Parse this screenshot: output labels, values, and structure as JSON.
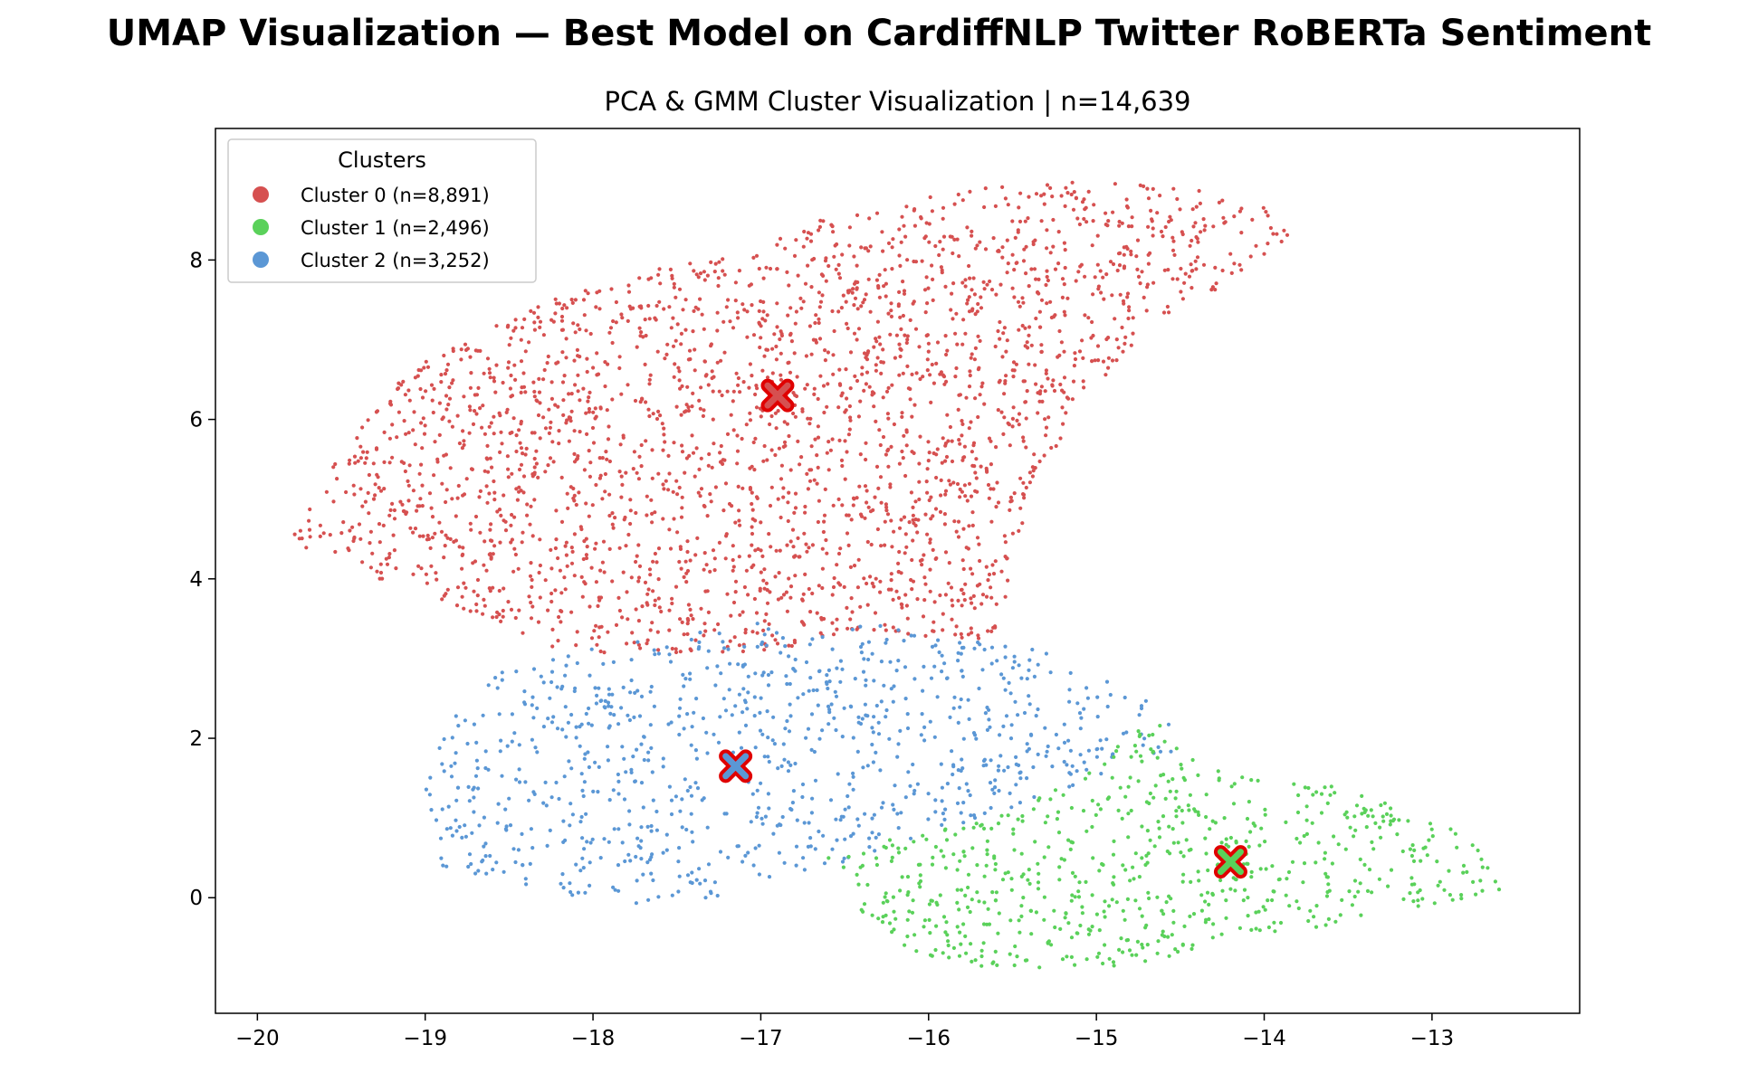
{
  "title": "UMAP Visualization — Best Model on CardiffNLP Twitter RoBERTa Sentiment",
  "chart_data": {
    "type": "scatter",
    "title": "UMAP Visualization — Best Model on CardiffNLP Twitter RoBERTa Sentiment",
    "subtitle": "PCA & GMM Cluster Visualization  |  n=14,639",
    "xlabel": "",
    "ylabel": "",
    "xlim": [
      -20.25,
      -12.12
    ],
    "ylim": [
      -1.45,
      9.65
    ],
    "x_ticks": [
      -20,
      -19,
      -18,
      -17,
      -16,
      -15,
      -14,
      -13
    ],
    "y_ticks": [
      0,
      2,
      4,
      6,
      8
    ],
    "x_tick_labels": [
      "−20",
      "−19",
      "−18",
      "−17",
      "−16",
      "−15",
      "−14",
      "−13"
    ],
    "y_tick_labels": [
      "0",
      "2",
      "4",
      "6",
      "8"
    ],
    "grid": false,
    "legend": {
      "title": "Clusters",
      "placement": "top-left"
    },
    "series": [
      {
        "name": "Cluster 0 (n=8,891)",
        "count": 8891,
        "color": "#d65050",
        "centroid": [
          -16.9,
          6.3
        ],
        "approx_outline": [
          [
            -19.8,
            4.5
          ],
          [
            -19.5,
            5.6
          ],
          [
            -19.2,
            6.5
          ],
          [
            -18.7,
            7.1
          ],
          [
            -18.0,
            7.7
          ],
          [
            -17.2,
            8.1
          ],
          [
            -16.5,
            8.6
          ],
          [
            -15.8,
            8.9
          ],
          [
            -15.0,
            9.0
          ],
          [
            -14.4,
            8.9
          ],
          [
            -14.0,
            8.7
          ],
          [
            -13.85,
            8.3
          ],
          [
            -14.1,
            7.8
          ],
          [
            -14.6,
            7.3
          ],
          [
            -15.1,
            6.2
          ],
          [
            -15.4,
            5.0
          ],
          [
            -15.5,
            4.0
          ],
          [
            -15.6,
            3.2
          ],
          [
            -16.3,
            3.3
          ],
          [
            -17.3,
            3.0
          ],
          [
            -18.2,
            3.1
          ],
          [
            -19.0,
            3.8
          ],
          [
            -19.6,
            4.2
          ]
        ]
      },
      {
        "name": "Cluster 1 (n=2,496)",
        "count": 2496,
        "color": "#5ad15a",
        "centroid": [
          -14.2,
          0.45
        ],
        "approx_outline": [
          [
            -16.6,
            0.5
          ],
          [
            -16.0,
            0.9
          ],
          [
            -15.2,
            1.4
          ],
          [
            -14.7,
            2.3
          ],
          [
            -14.3,
            1.6
          ],
          [
            -13.6,
            1.4
          ],
          [
            -13.0,
            1.0
          ],
          [
            -12.6,
            0.5
          ],
          [
            -12.6,
            0.1
          ],
          [
            -13.2,
            -0.2
          ],
          [
            -14.0,
            -0.5
          ],
          [
            -14.8,
            -0.85
          ],
          [
            -15.8,
            -0.9
          ],
          [
            -16.3,
            -0.5
          ]
        ]
      },
      {
        "name": "Cluster 2 (n=3,252)",
        "count": 3252,
        "color": "#5b97d5",
        "centroid": [
          -17.15,
          1.65
        ],
        "approx_outline": [
          [
            -19.0,
            1.3
          ],
          [
            -18.9,
            2.2
          ],
          [
            -18.5,
            3.0
          ],
          [
            -17.6,
            3.3
          ],
          [
            -16.9,
            3.5
          ],
          [
            -16.2,
            3.4
          ],
          [
            -15.3,
            3.1
          ],
          [
            -14.6,
            2.4
          ],
          [
            -14.5,
            1.8
          ],
          [
            -15.1,
            1.4
          ],
          [
            -15.7,
            1.0
          ],
          [
            -16.4,
            0.5
          ],
          [
            -17.1,
            0.1
          ],
          [
            -17.6,
            -0.15
          ],
          [
            -18.2,
            0.0
          ],
          [
            -18.9,
            0.4
          ]
        ]
      }
    ]
  }
}
